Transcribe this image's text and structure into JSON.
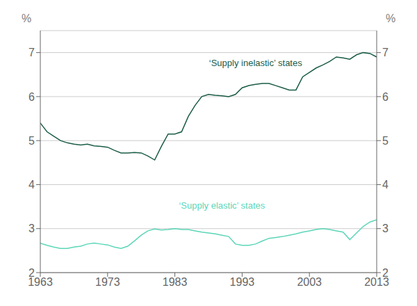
{
  "chart_data": {
    "type": "line",
    "x": [
      1963,
      1964,
      1965,
      1966,
      1967,
      1968,
      1969,
      1970,
      1971,
      1972,
      1973,
      1974,
      1975,
      1976,
      1977,
      1978,
      1979,
      1980,
      1981,
      1982,
      1983,
      1984,
      1985,
      1986,
      1987,
      1988,
      1989,
      1990,
      1991,
      1992,
      1993,
      1994,
      1995,
      1996,
      1997,
      1998,
      1999,
      2000,
      2001,
      2002,
      2003,
      2004,
      2005,
      2006,
      2007,
      2008,
      2009,
      2010,
      2011,
      2012,
      2013
    ],
    "series": [
      {
        "color": "#1a5c47",
        "values": [
          5.4,
          5.2,
          5.1,
          5.0,
          4.95,
          4.92,
          4.9,
          4.92,
          4.88,
          4.87,
          4.85,
          4.78,
          4.72,
          4.72,
          4.73,
          4.72,
          4.65,
          4.56,
          4.87,
          5.15,
          5.15,
          5.2,
          5.55,
          5.8,
          6.0,
          6.05,
          6.03,
          6.02,
          6.0,
          6.05,
          6.2,
          6.25,
          6.28,
          6.3,
          6.3,
          6.25,
          6.2,
          6.15,
          6.15,
          6.45,
          6.55,
          6.65,
          6.72,
          6.8,
          6.9,
          6.88,
          6.85,
          6.95,
          7.0,
          6.98,
          6.9
        ]
      },
      {
        "color": "#5cd6b8",
        "values": [
          2.67,
          2.62,
          2.58,
          2.55,
          2.55,
          2.58,
          2.6,
          2.65,
          2.67,
          2.65,
          2.63,
          2.58,
          2.55,
          2.6,
          2.72,
          2.85,
          2.95,
          2.99,
          2.97,
          2.98,
          3.0,
          2.98,
          2.98,
          2.95,
          2.92,
          2.9,
          2.88,
          2.85,
          2.82,
          2.65,
          2.62,
          2.62,
          2.65,
          2.72,
          2.78,
          2.8,
          2.82,
          2.85,
          2.88,
          2.92,
          2.95,
          2.98,
          3.0,
          2.98,
          2.95,
          2.92,
          2.75,
          2.9,
          3.05,
          3.15,
          3.2
        ]
      }
    ],
    "xlim": [
      1963,
      2013
    ],
    "xticks": [
      1963,
      1973,
      1983,
      1993,
      2003,
      2013
    ],
    "ylim": [
      2,
      7.5
    ],
    "yticks": [
      2,
      3,
      4,
      5,
      6,
      7
    ],
    "y2lim": [
      2,
      7.5
    ],
    "y2ticks": [
      2,
      3,
      4,
      5,
      6,
      7
    ],
    "y_label": "%",
    "y2_label": "%",
    "grid": "y",
    "annotations": [
      {
        "text": "‘Supply inelastic’ states",
        "x": 1995,
        "y": 6.62,
        "color": "#1a5c47"
      },
      {
        "text": "‘Supply elastic’ states",
        "x": 1990,
        "y": 3.38,
        "color": "#5cd6b8"
      }
    ]
  }
}
